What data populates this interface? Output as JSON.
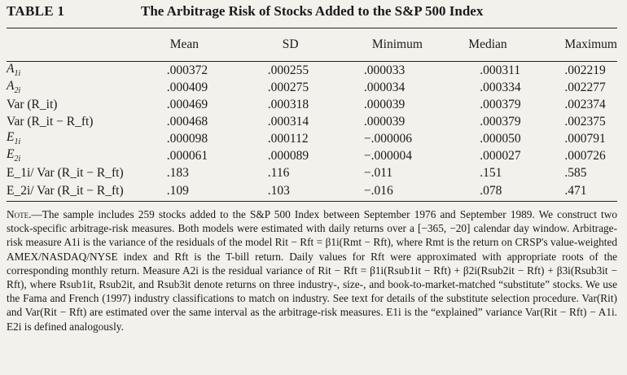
{
  "table": {
    "label": "TABLE 1",
    "title": "The Arbitrage Risk of Stocks Added to the S&P 500 Index",
    "columns": [
      "Mean",
      "SD",
      "Minimum",
      "Median",
      "Maximum"
    ],
    "rows": [
      {
        "label_parts": [
          "A",
          "1i",
          ""
        ],
        "values": [
          ".000372",
          ".000255",
          ".000033",
          ".000311",
          ".002219"
        ]
      },
      {
        "label_parts": [
          "A",
          "2i",
          ""
        ],
        "values": [
          ".000409",
          ".000275",
          ".000034",
          ".000334",
          ".002277"
        ]
      },
      {
        "label_text": "Var (R_it)",
        "values": [
          ".000469",
          ".000318",
          ".000039",
          ".000379",
          ".002374"
        ]
      },
      {
        "label_text": "Var (R_it − R_ft)",
        "values": [
          ".000468",
          ".000314",
          ".000039",
          ".000379",
          ".002375"
        ]
      },
      {
        "label_parts": [
          "E",
          "1i",
          ""
        ],
        "values": [
          ".000098",
          ".000112",
          "−.000006",
          ".000050",
          ".000791"
        ]
      },
      {
        "label_parts": [
          "E",
          "2i",
          ""
        ],
        "values": [
          ".000061",
          ".000089",
          "−.000004",
          ".000027",
          ".000726"
        ]
      },
      {
        "label_text": "E_1i/ Var (R_it − R_ft)",
        "values": [
          ".183",
          ".116",
          "−.011",
          ".151",
          ".585"
        ]
      },
      {
        "label_text": "E_2i/ Var (R_it − R_ft)",
        "values": [
          ".109",
          ".103",
          "−.016",
          ".078",
          ".471"
        ]
      }
    ]
  },
  "note": {
    "head": "Note.",
    "text": "—The sample includes 259 stocks added to the S&P 500 Index between September 1976 and September 1989. We construct two stock-specific arbitrage-risk measures. Both models were estimated with daily returns over a [−365, −20] calendar day window. Arbitrage-risk measure A1i is the variance of the residuals of the model Rit − Rft = β1i(Rmt − Rft), where Rmt is the return on CRSP's value-weighted AMEX/NASDAQ/NYSE index and Rft is the T-bill return. Daily values for Rft were approximated with appropriate roots of the corresponding monthly return. Measure A2i is the residual variance of Rit − Rft = β1i(Rsub1it − Rft) + β2i(Rsub2it − Rft) + β3i(Rsub3it − Rft), where Rsub1it, Rsub2it, and Rsub3it denote returns on three industry-, size-, and book-to-market-matched “substitute” stocks. We use the Fama and French (1997) industry classifications to match on industry. See text for details of the substitute selection procedure. Var(Rit) and Var(Rit − Rft) are estimated over the same interval as the arbitrage-risk measures. E1i is the “explained” variance Var(Rit − Rft) − A1i. E2i is defined analogously."
  }
}
